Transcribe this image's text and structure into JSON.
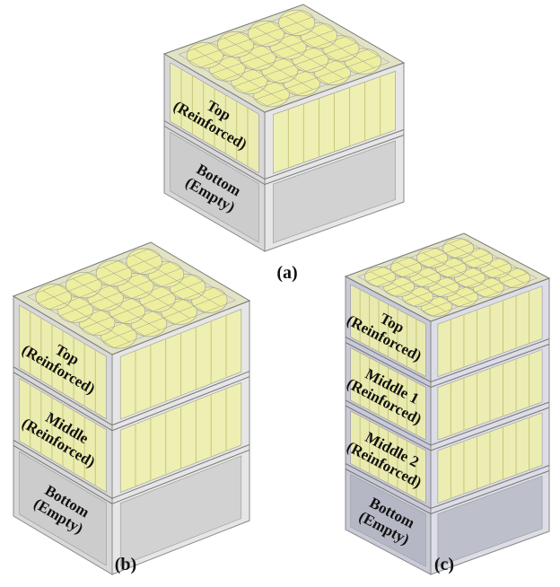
{
  "panels": [
    {
      "caption": "(a)",
      "layers": [
        {
          "name": "Top",
          "note": "(Reinforced)"
        },
        {
          "name": "Bottom",
          "note": "(Empty)"
        }
      ]
    },
    {
      "caption": "(b)",
      "layers": [
        {
          "name": "Top",
          "note": "(Reinforced)"
        },
        {
          "name": "Middle",
          "note": "(Reinforced)"
        },
        {
          "name": "Bottom",
          "note": "(Empty)"
        }
      ]
    },
    {
      "caption": "(c)",
      "layers": [
        {
          "name": "Top",
          "note": "(Reinforced)"
        },
        {
          "name": "Middle 1",
          "note": "(Reinforced)"
        },
        {
          "name": "Middle 2",
          "note": "(Reinforced)"
        },
        {
          "name": "Bottom",
          "note": "(Empty)"
        }
      ]
    }
  ]
}
